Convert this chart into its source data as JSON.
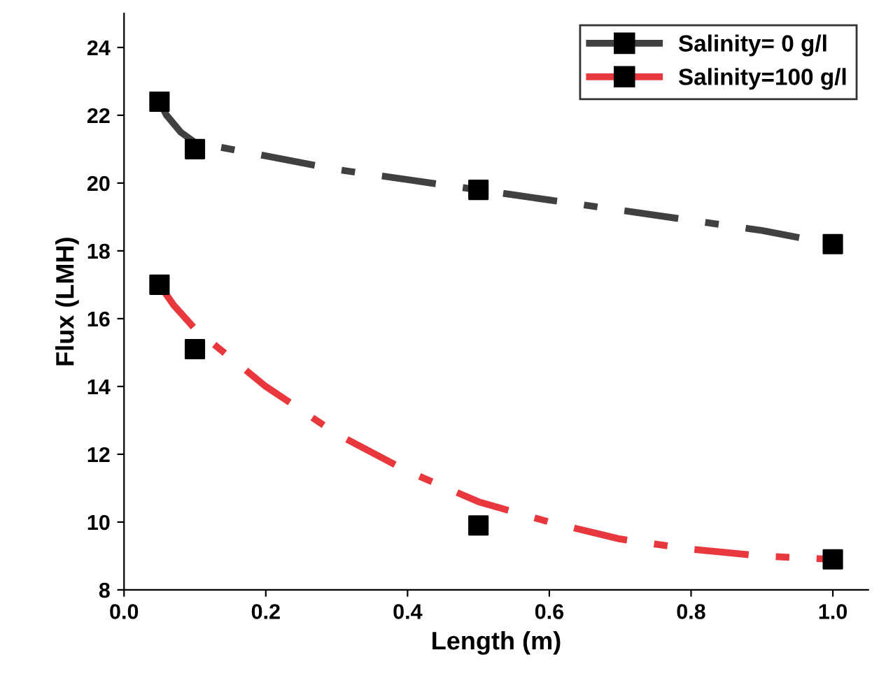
{
  "chart_data": {
    "type": "line",
    "xlabel": "Length (m)",
    "ylabel": "Flux (LMH)",
    "xlim": [
      0,
      1.05
    ],
    "xticks": [
      {
        "value": 0,
        "label": "0.0"
      },
      0.2,
      0.4,
      0.6,
      0.8,
      {
        "value": 1,
        "label": "1.0"
      }
    ],
    "ylim": [
      8,
      25
    ],
    "yticks": [
      8,
      10,
      12,
      14,
      16,
      18,
      20,
      22,
      24
    ],
    "grid": false,
    "legend": "top right",
    "series": [
      {
        "name": "Salinity= 0 g/l",
        "color": "#404040",
        "line_style": "dashdot",
        "x": [
          0.05,
          0.06,
          0.08,
          0.1,
          0.2,
          0.3,
          0.4,
          0.5,
          0.6,
          0.7,
          0.8,
          0.9,
          1.0
        ],
        "values": [
          22.4,
          22.0,
          21.5,
          21.2,
          20.8,
          20.4,
          20.1,
          19.8,
          19.5,
          19.2,
          18.9,
          18.6,
          18.2
        ]
      },
      {
        "type": "scatter",
        "color": "#000000",
        "marker": "square",
        "x": [
          0.05,
          0.1,
          0.5,
          1.0
        ],
        "values": [
          22.4,
          21.0,
          19.8,
          18.2
        ]
      },
      {
        "name": "Salinity=100 g/l",
        "color": "#e8383d",
        "line_style": "dashdot",
        "x": [
          0.05,
          0.07,
          0.1,
          0.2,
          0.3,
          0.4,
          0.5,
          0.6,
          0.7,
          0.8,
          0.9,
          1.0
        ],
        "values": [
          17.0,
          16.4,
          15.7,
          14.0,
          12.6,
          11.5,
          10.6,
          10.0,
          9.5,
          9.2,
          9.0,
          8.9
        ]
      },
      {
        "type": "scatter",
        "color": "#000000",
        "marker": "square",
        "x": [
          0.05,
          0.1,
          0.5,
          1.0
        ],
        "values": [
          17.0,
          15.1,
          9.9,
          8.9
        ]
      }
    ]
  }
}
